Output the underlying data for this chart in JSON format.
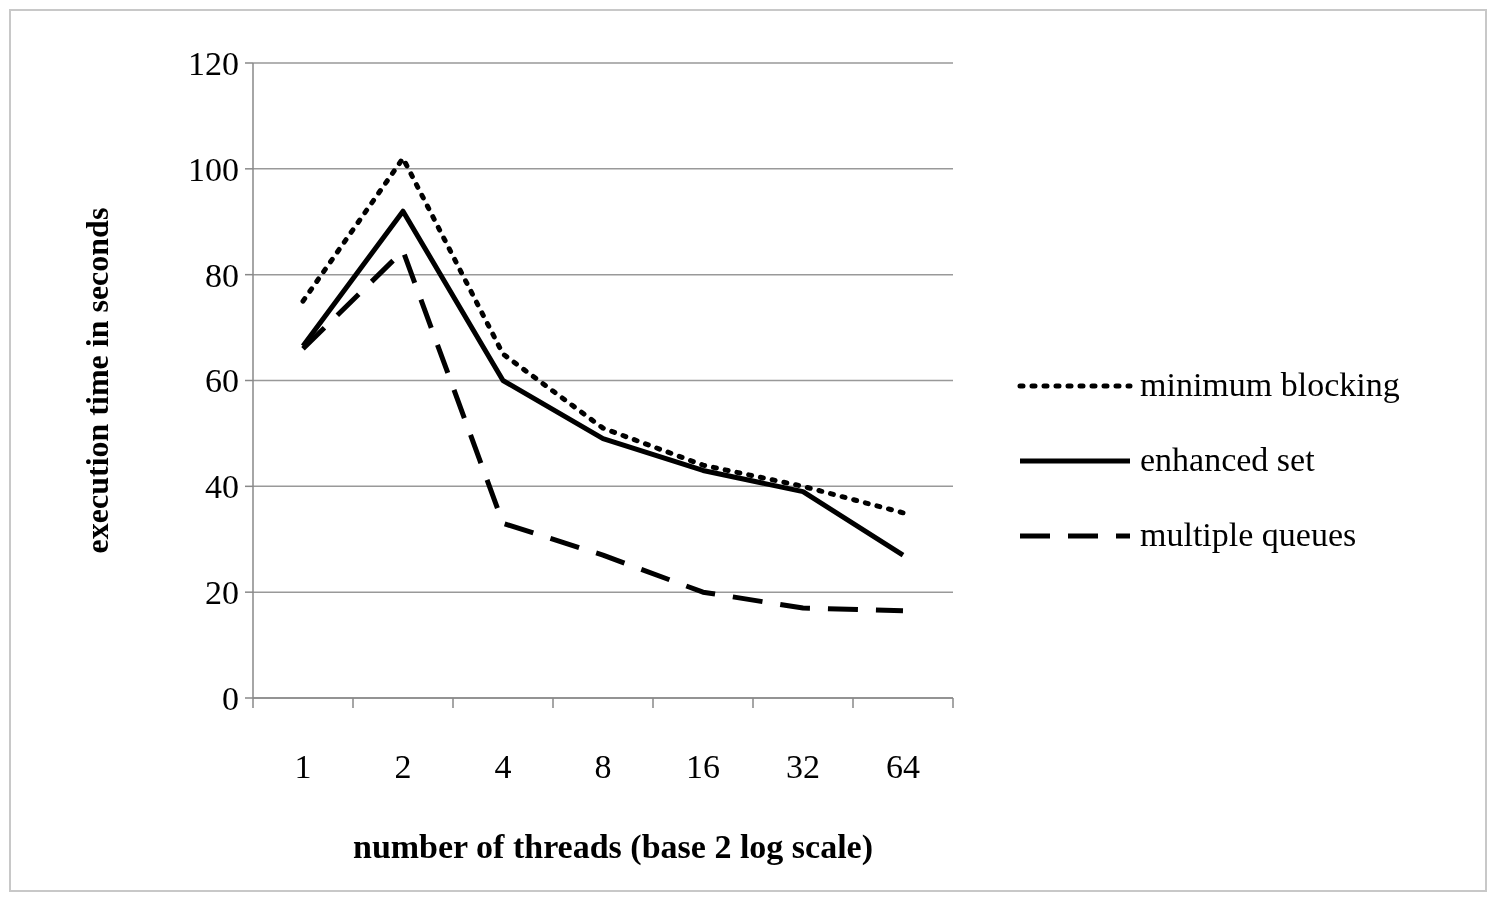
{
  "chart_data": {
    "type": "line",
    "xlabel": "number of threads (base 2 log scale)",
    "ylabel": "execution time in seconds",
    "categories": [
      "1",
      "2",
      "4",
      "8",
      "16",
      "32",
      "64"
    ],
    "series": [
      {
        "name": "minimum blocking",
        "color": "#000000",
        "line_style": "dotted",
        "values": [
          75,
          102,
          65,
          51,
          44,
          40,
          35
        ]
      },
      {
        "name": "enhanced set",
        "color": "#000000",
        "line_style": "solid",
        "values": [
          66.5,
          92,
          60,
          49,
          43,
          39,
          27
        ]
      },
      {
        "name": "multiple queues",
        "color": "#000000",
        "line_style": "dashed",
        "values": [
          66,
          84.5,
          33,
          27,
          20,
          17,
          16.5
        ]
      }
    ],
    "ylim": [
      0,
      120
    ],
    "yticks": [
      0,
      20,
      40,
      60,
      80,
      100,
      120
    ],
    "grid": "y",
    "legend": "right",
    "marker": "none"
  }
}
